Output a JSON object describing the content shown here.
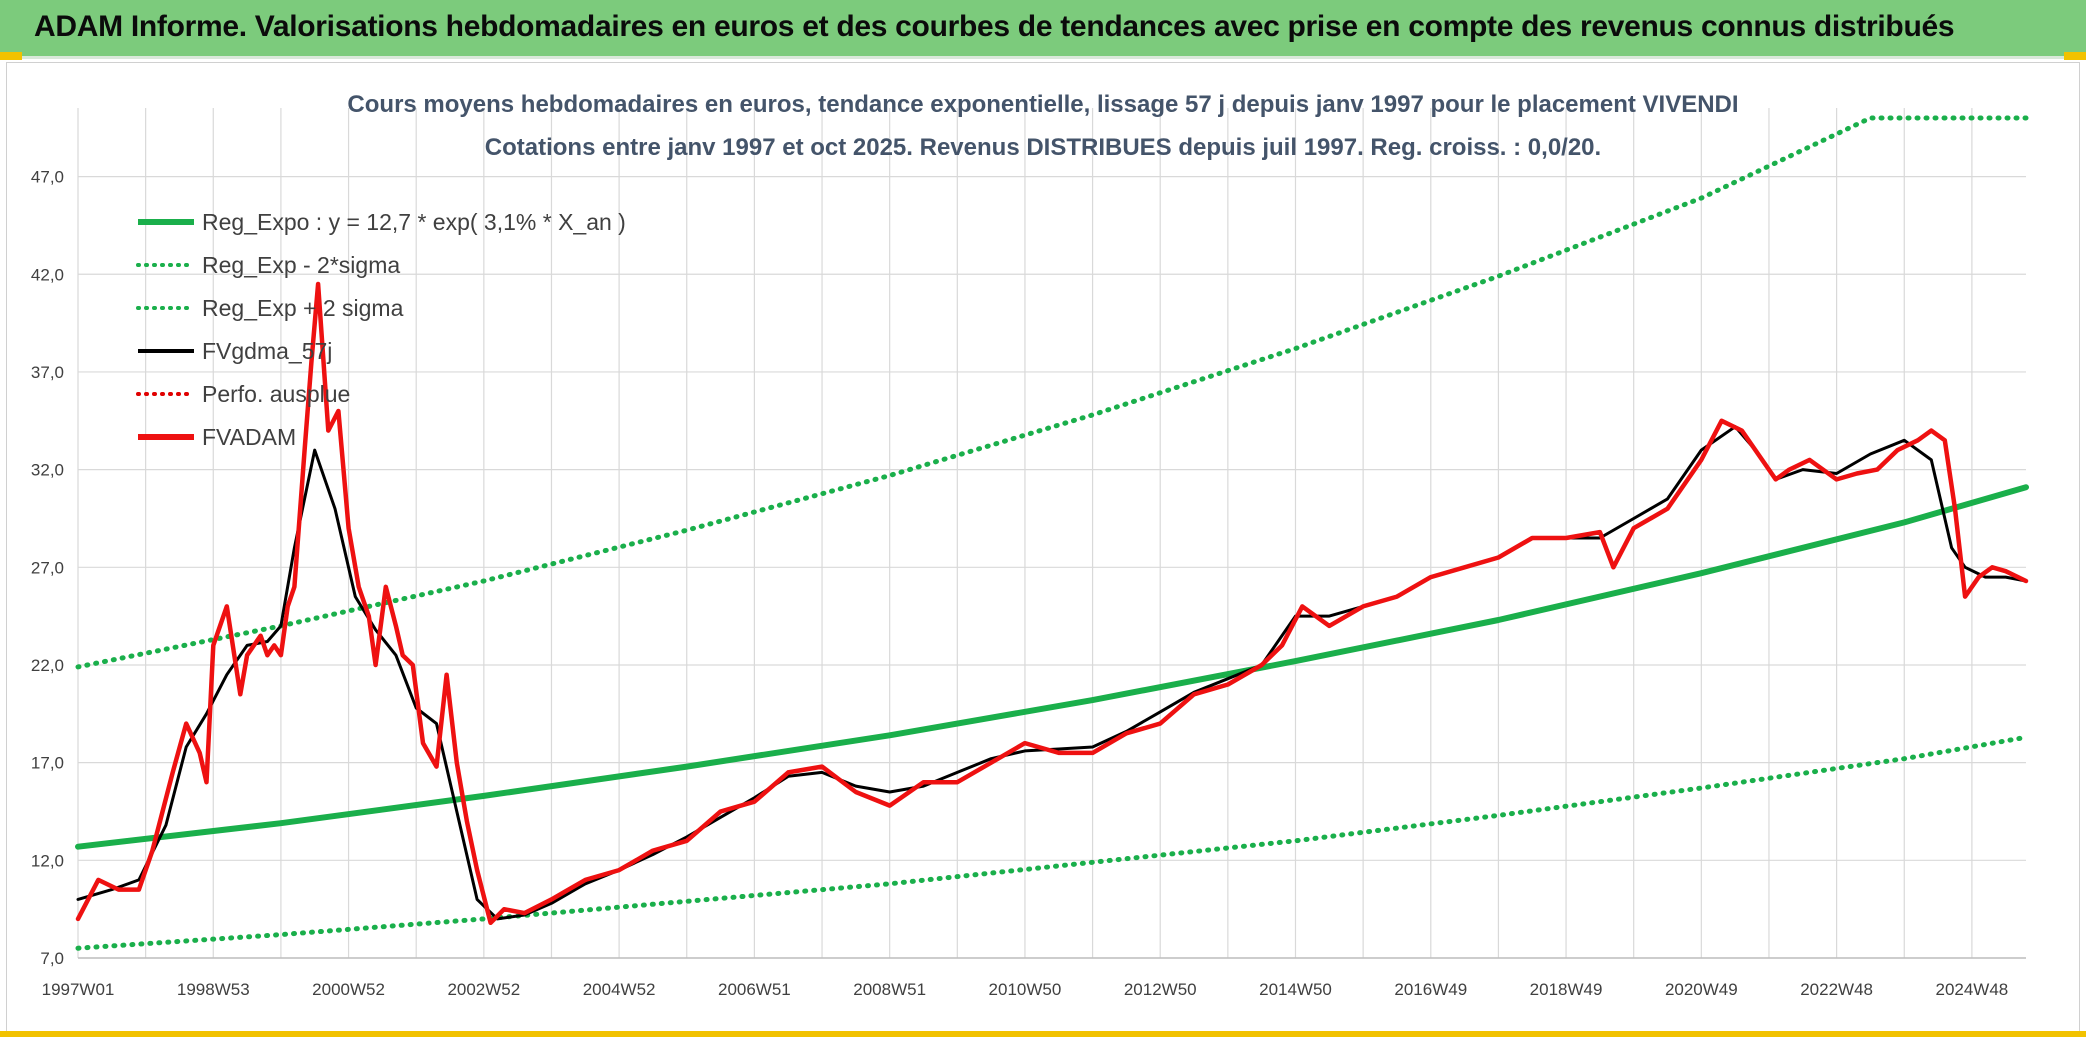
{
  "banner": {
    "title": "ADAM Informe. Valorisations hebdomadaires en euros et des courbes de tendances avec prise en compte des revenus connus distribués"
  },
  "colors": {
    "banner_bg": "#7ccb7c",
    "accent_yellow": "#f2c200",
    "title_text": "#44546a",
    "trend_green": "#1aaf4b",
    "band_green": "#1aaf4b",
    "smooth_black": "#000000",
    "perf_red": "#e00000",
    "price_red": "#ee1111",
    "grid": "#d9d9d9"
  },
  "chart_data": {
    "type": "line",
    "title": "Cours moyens hebdomadaires en euros, tendance exponentielle, lissage 57 j depuis janv 1997 pour le placement VIVENDI",
    "subtitle": "Cotations entre janv 1997 et oct 2025. Revenus DISTRIBUES depuis juil 1997. Reg. croiss. : 0,0/20.",
    "xlabel": "",
    "ylabel": "",
    "x_range": [
      1997.0,
      2025.8
    ],
    "ylim": [
      7.0,
      50.0
    ],
    "y_ticks": [
      "7,0",
      "12,0",
      "17,0",
      "22,0",
      "27,0",
      "32,0",
      "37,0",
      "42,0",
      "47,0"
    ],
    "y_tick_values": [
      7,
      12,
      17,
      22,
      27,
      32,
      37,
      42,
      47
    ],
    "x_ticks": [
      "1997W01",
      "1998W53",
      "2000W52",
      "2002W52",
      "2004W52",
      "2006W51",
      "2008W51",
      "2010W50",
      "2012W50",
      "2014W50",
      "2016W49",
      "2018W49",
      "2020W49",
      "2022W48",
      "2024W48"
    ],
    "x_tick_values": [
      1997.0,
      1999.0,
      2001.0,
      2003.0,
      2005.0,
      2007.0,
      2009.0,
      2011.0,
      2013.0,
      2015.0,
      2017.0,
      2019.0,
      2021.0,
      2023.0,
      2025.0
    ],
    "grid": true,
    "legend_position": "top-left",
    "legend": [
      {
        "label": "Reg_Expo : y = 12,7 * exp( 3,1% *  X_an )",
        "style": "solid-thick",
        "color": "#1aaf4b"
      },
      {
        "label": "Reg_Exp - 2*sigma",
        "style": "dotted",
        "color": "#1aaf4b"
      },
      {
        "label": "Reg_Exp + 2 sigma",
        "style": "dotted",
        "color": "#1aaf4b"
      },
      {
        "label": "FVgdma_57j",
        "style": "solid",
        "color": "#000000"
      },
      {
        "label": "Perfo. ausplue",
        "style": "dotted",
        "color": "#e00000"
      },
      {
        "label": "FVADAM",
        "style": "solid-thick",
        "color": "#ee1111"
      }
    ],
    "series": [
      {
        "name": "Reg_Expo : y = 12,7 * exp( 3,1% *  X_an )",
        "x": [
          1997.0,
          2000.0,
          2003.0,
          2006.0,
          2009.0,
          2012.0,
          2015.0,
          2018.0,
          2021.0,
          2024.0,
          2025.8
        ],
        "values": [
          12.7,
          13.9,
          15.3,
          16.8,
          18.4,
          20.2,
          22.2,
          24.3,
          26.7,
          29.3,
          31.1
        ]
      },
      {
        "name": "Reg_Exp - 2*sigma",
        "x": [
          1997.0,
          2000.0,
          2003.0,
          2006.0,
          2009.0,
          2012.0,
          2015.0,
          2018.0,
          2021.0,
          2024.0,
          2025.8
        ],
        "values": [
          7.5,
          8.2,
          9.0,
          9.9,
          10.8,
          11.9,
          13.0,
          14.3,
          15.7,
          17.2,
          18.3
        ]
      },
      {
        "name": "Reg_Exp + 2 sigma",
        "x": [
          1997.0,
          2000.0,
          2003.0,
          2006.0,
          2009.0,
          2012.0,
          2015.0,
          2018.0,
          2021.0,
          2023.5,
          2024.0,
          2025.8
        ],
        "values": [
          21.9,
          24.0,
          26.3,
          28.9,
          31.7,
          34.8,
          38.2,
          41.9,
          45.9,
          50.0,
          50.0,
          50.0
        ]
      },
      {
        "name": "FVgdma_57j",
        "x": [
          1997.0,
          1997.5,
          1997.9,
          1998.3,
          1998.6,
          1998.9,
          1999.2,
          1999.5,
          1999.8,
          2000.0,
          2000.2,
          2000.5,
          2000.8,
          2001.1,
          2001.4,
          2001.7,
          2002.0,
          2002.3,
          2002.6,
          2002.9,
          2003.2,
          2003.6,
          2004.0,
          2004.5,
          2005.0,
          2005.5,
          2006.0,
          2006.5,
          2007.0,
          2007.5,
          2008.0,
          2008.5,
          2009.0,
          2009.5,
          2010.0,
          2010.5,
          2011.0,
          2011.5,
          2012.0,
          2012.5,
          2013.0,
          2013.5,
          2014.0,
          2014.5,
          2015.0,
          2015.5,
          2016.0,
          2016.5,
          2017.0,
          2017.5,
          2018.0,
          2018.5,
          2019.0,
          2019.5,
          2020.0,
          2020.5,
          2021.0,
          2021.5,
          2021.8,
          2022.1,
          2022.5,
          2023.0,
          2023.5,
          2024.0,
          2024.4,
          2024.7,
          2024.9,
          2025.2,
          2025.5,
          2025.8
        ],
        "values": [
          10.0,
          10.5,
          11.0,
          13.8,
          17.8,
          19.5,
          21.5,
          23.0,
          23.2,
          24.0,
          28.0,
          33.0,
          30.0,
          25.5,
          23.8,
          22.5,
          19.8,
          19.0,
          14.5,
          10.0,
          9.0,
          9.2,
          9.8,
          10.8,
          11.5,
          12.3,
          13.2,
          14.2,
          15.2,
          16.3,
          16.5,
          15.8,
          15.5,
          15.8,
          16.5,
          17.2,
          17.6,
          17.7,
          17.8,
          18.6,
          19.6,
          20.6,
          21.3,
          22.0,
          24.5,
          24.5,
          25.0,
          25.5,
          26.5,
          27.0,
          27.5,
          28.5,
          28.5,
          28.5,
          29.5,
          30.5,
          33.0,
          34.2,
          33.0,
          31.5,
          32.0,
          31.8,
          32.8,
          33.5,
          32.5,
          28.0,
          27.0,
          26.5,
          26.5,
          26.3
        ]
      },
      {
        "name": "FVADAM",
        "x": [
          1997.0,
          1997.3,
          1997.6,
          1997.9,
          1998.1,
          1998.4,
          1998.6,
          1998.8,
          1998.9,
          1999.0,
          1999.2,
          1999.4,
          1999.5,
          1999.7,
          1999.8,
          1999.9,
          2000.0,
          2000.1,
          2000.2,
          2000.35,
          2000.45,
          2000.55,
          2000.7,
          2000.85,
          2001.0,
          2001.15,
          2001.3,
          2001.4,
          2001.55,
          2001.7,
          2001.8,
          2001.95,
          2002.1,
          2002.3,
          2002.45,
          2002.6,
          2002.75,
          2002.9,
          2003.1,
          2003.3,
          2003.6,
          2004.0,
          2004.5,
          2005.0,
          2005.5,
          2006.0,
          2006.5,
          2007.0,
          2007.5,
          2008.0,
          2008.5,
          2009.0,
          2009.5,
          2010.0,
          2010.5,
          2011.0,
          2011.5,
          2012.0,
          2012.5,
          2013.0,
          2013.5,
          2014.0,
          2014.5,
          2014.8,
          2015.1,
          2015.5,
          2016.0,
          2016.5,
          2017.0,
          2017.5,
          2018.0,
          2018.5,
          2019.0,
          2019.5,
          2019.7,
          2020.0,
          2020.5,
          2021.0,
          2021.3,
          2021.6,
          2021.8,
          2022.1,
          2022.3,
          2022.6,
          2023.0,
          2023.3,
          2023.6,
          2023.9,
          2024.2,
          2024.4,
          2024.6,
          2024.75,
          2024.9,
          2025.1,
          2025.3,
          2025.5,
          2025.8
        ],
        "values": [
          9.0,
          11.0,
          10.5,
          10.5,
          12.5,
          16.5,
          19.0,
          17.5,
          16.0,
          23.0,
          25.0,
          20.5,
          22.5,
          23.5,
          22.5,
          23.0,
          22.5,
          25.0,
          26.0,
          33.0,
          37.5,
          41.5,
          34.0,
          35.0,
          29.0,
          26.0,
          24.5,
          22.0,
          26.0,
          24.0,
          22.5,
          22.0,
          18.0,
          16.8,
          21.5,
          17.0,
          14.0,
          11.5,
          8.8,
          9.5,
          9.3,
          10.0,
          11.0,
          11.5,
          12.5,
          13.0,
          14.5,
          15.0,
          16.5,
          16.8,
          15.5,
          14.8,
          16.0,
          16.0,
          17.0,
          18.0,
          17.5,
          17.5,
          18.5,
          19.0,
          20.5,
          21.0,
          22.0,
          23.0,
          25.0,
          24.0,
          25.0,
          25.5,
          26.5,
          27.0,
          27.5,
          28.5,
          28.5,
          28.8,
          27.0,
          29.0,
          30.0,
          32.5,
          34.5,
          34.0,
          33.0,
          31.5,
          32.0,
          32.5,
          31.5,
          31.8,
          32.0,
          33.0,
          33.5,
          34.0,
          33.5,
          30.0,
          25.5,
          26.5,
          27.0,
          26.8,
          26.3
        ]
      }
    ]
  }
}
